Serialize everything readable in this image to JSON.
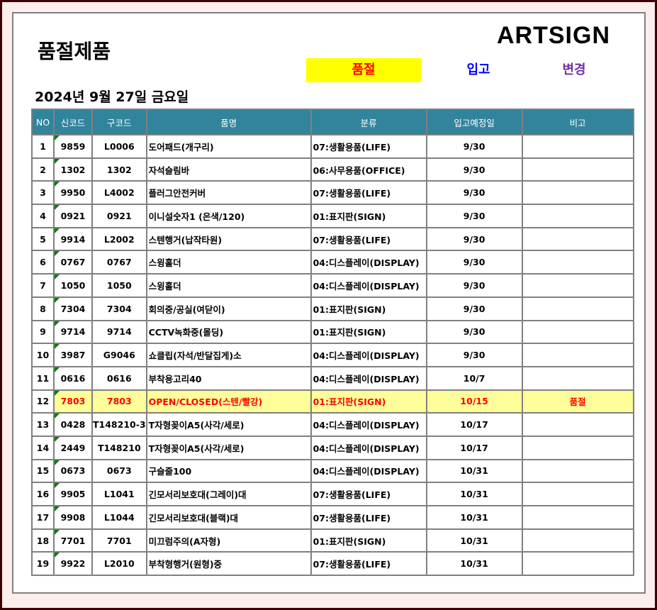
{
  "title": "품절제품",
  "logo": "ARTSIGN",
  "buttons": [
    {
      "label": "품절",
      "bg": "#ffff00",
      "color": "#ff0000"
    },
    {
      "label": "입고",
      "color": "#0000ff"
    },
    {
      "label": "변경",
      "color": "#7030a0"
    }
  ],
  "date": "2024년 9월 27일 금요일",
  "table": {
    "headers": [
      "NO",
      "신코드",
      "구코드",
      "품명",
      "분류",
      "입고예정일",
      "비고"
    ],
    "rows": [
      [
        "1",
        "9859",
        "L0006",
        "도어패드(개구리)",
        "07:생활용품(LIFE)",
        "9/30",
        ""
      ],
      [
        "2",
        "1302",
        "1302",
        "자석슬림바",
        "06:사무용품(OFFICE)",
        "9/30",
        ""
      ],
      [
        "3",
        "9950",
        "L4002",
        "플러그안전커버",
        "07:생활용품(LIFE)",
        "9/30",
        ""
      ],
      [
        "4",
        "0921",
        "0921",
        "이니설숫자1 (은색/120)",
        "01:표지판(SIGN)",
        "9/30",
        ""
      ],
      [
        "5",
        "9914",
        "L2002",
        "스텐행거(납작타원)",
        "07:생활용품(LIFE)",
        "9/30",
        ""
      ],
      [
        "6",
        "0767",
        "0767",
        "스윙홀더",
        "04:디스플레이(DISPLAY)",
        "9/30",
        ""
      ],
      [
        "7",
        "1050",
        "1050",
        "스윙홀더",
        "04:디스플레이(DISPLAY)",
        "9/30",
        ""
      ],
      [
        "8",
        "7304",
        "7304",
        "회의중/공실(여닫이)",
        "01:표지판(SIGN)",
        "9/30",
        ""
      ],
      [
        "9",
        "9714",
        "9714",
        "CCTV녹화중(몰딩)",
        "01:표지판(SIGN)",
        "9/30",
        ""
      ],
      [
        "10",
        "3987",
        "G9046",
        "쇼클립(자석/반달집게)소",
        "04:디스플레이(DISPLAY)",
        "9/30",
        ""
      ],
      [
        "11",
        "0616",
        "0616",
        "부착용고리40",
        "04:디스플레이(DISPLAY)",
        "10/7",
        ""
      ],
      [
        "12",
        "7803",
        "7803",
        "OPEN/CLOSED(스텐/빨강)",
        "01:표지판(SIGN)",
        "10/15",
        "품절"
      ],
      [
        "13",
        "0428",
        "T148210-3",
        "T자형꽂이A5(사각/세로)",
        "04:디스플레이(DISPLAY)",
        "10/17",
        ""
      ],
      [
        "14",
        "2449",
        "T148210",
        "T자형꽂이A5(사각/세로)",
        "04:디스플레이(DISPLAY)",
        "10/17",
        ""
      ],
      [
        "15",
        "0673",
        "0673",
        "구슬줄100",
        "04:디스플레이(DISPLAY)",
        "10/31",
        ""
      ],
      [
        "16",
        "9905",
        "L1041",
        "긴모서리보호대(그레이)대",
        "07:생활용품(LIFE)",
        "10/31",
        ""
      ],
      [
        "17",
        "9908",
        "L1044",
        "긴모서리보호대(블랙)대",
        "07:생활용품(LIFE)",
        "10/31",
        ""
      ],
      [
        "18",
        "7701",
        "7701",
        "미끄럼주의(A자형)",
        "01:표지판(SIGN)",
        "10/31",
        ""
      ],
      [
        "19",
        "9922",
        "L2010",
        "부착형행거(원형)중",
        "07:생활용품(LIFE)",
        "10/31",
        ""
      ]
    ],
    "highlight_row": 12,
    "highlight_bg": "#ffff99",
    "highlight_color": "#ff0000",
    "header_bg": "#31849b"
  }
}
